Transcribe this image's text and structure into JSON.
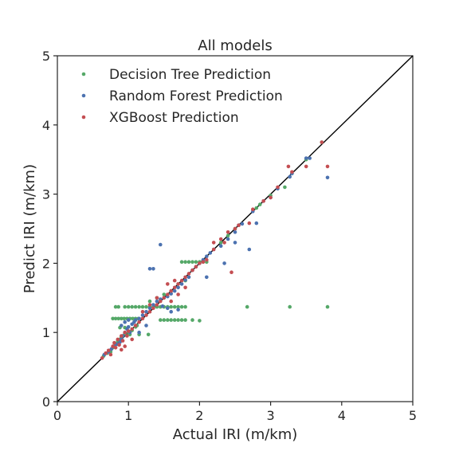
{
  "chart_data": {
    "type": "scatter",
    "title": "All models",
    "xlabel": "Actual IRI (m/km)",
    "ylabel": "Predict IRI (m/km)",
    "xlim": [
      0,
      5
    ],
    "ylim": [
      0,
      5
    ],
    "xticks": [
      "0",
      "1",
      "2",
      "3",
      "4",
      "5"
    ],
    "yticks": [
      "0",
      "1",
      "2",
      "3",
      "4",
      "5"
    ],
    "grid": false,
    "legend_position": "top-left",
    "reference_line": {
      "x": [
        0,
        5
      ],
      "y": [
        0,
        5
      ],
      "color": "#000000"
    },
    "series": [
      {
        "name": "Decision Tree Prediction",
        "color": "#55a868",
        "points": [
          [
            0.65,
            0.66
          ],
          [
            0.7,
            0.7
          ],
          [
            0.75,
            0.72
          ],
          [
            0.78,
            0.78
          ],
          [
            0.8,
            0.8
          ],
          [
            0.82,
            0.84
          ],
          [
            0.85,
            0.88
          ],
          [
            0.88,
            0.9
          ],
          [
            0.9,
            0.93
          ],
          [
            0.92,
            0.95
          ],
          [
            0.95,
            0.98
          ],
          [
            1.0,
            1.0
          ],
          [
            1.05,
            1.03
          ],
          [
            1.1,
            1.08
          ],
          [
            1.12,
            1.1
          ],
          [
            1.02,
            0.97
          ],
          [
            1.15,
            0.97
          ],
          [
            1.28,
            0.97
          ],
          [
            0.95,
            1.07
          ],
          [
            0.88,
            1.07
          ],
          [
            0.78,
            1.2
          ],
          [
            0.82,
            1.2
          ],
          [
            0.86,
            1.2
          ],
          [
            0.9,
            1.2
          ],
          [
            0.94,
            1.2
          ],
          [
            0.98,
            1.2
          ],
          [
            1.02,
            1.2
          ],
          [
            1.06,
            1.2
          ],
          [
            1.1,
            1.2
          ],
          [
            1.14,
            1.2
          ],
          [
            1.45,
            1.18
          ],
          [
            1.5,
            1.18
          ],
          [
            1.55,
            1.18
          ],
          [
            1.6,
            1.18
          ],
          [
            1.65,
            1.18
          ],
          [
            1.7,
            1.18
          ],
          [
            1.75,
            1.18
          ],
          [
            1.8,
            1.18
          ],
          [
            1.9,
            1.18
          ],
          [
            2.0,
            1.17
          ],
          [
            0.82,
            1.37
          ],
          [
            0.86,
            1.37
          ],
          [
            0.95,
            1.37
          ],
          [
            1.0,
            1.37
          ],
          [
            1.05,
            1.37
          ],
          [
            1.1,
            1.37
          ],
          [
            1.15,
            1.37
          ],
          [
            1.2,
            1.37
          ],
          [
            1.25,
            1.37
          ],
          [
            1.3,
            1.37
          ],
          [
            1.35,
            1.37
          ],
          [
            1.4,
            1.37
          ],
          [
            1.45,
            1.37
          ],
          [
            1.5,
            1.37
          ],
          [
            1.55,
            1.37
          ],
          [
            1.6,
            1.37
          ],
          [
            1.65,
            1.37
          ],
          [
            1.7,
            1.37
          ],
          [
            1.75,
            1.37
          ],
          [
            1.8,
            1.37
          ],
          [
            2.67,
            1.37
          ],
          [
            3.27,
            1.37
          ],
          [
            3.8,
            1.37
          ],
          [
            1.3,
            1.45
          ],
          [
            1.4,
            1.5
          ],
          [
            1.5,
            1.55
          ],
          [
            1.6,
            1.6
          ],
          [
            1.7,
            1.7
          ],
          [
            1.8,
            1.75
          ],
          [
            1.75,
            2.02
          ],
          [
            1.8,
            2.02
          ],
          [
            1.85,
            2.02
          ],
          [
            1.9,
            2.02
          ],
          [
            1.95,
            2.02
          ],
          [
            2.0,
            2.02
          ],
          [
            2.05,
            2.02
          ],
          [
            2.1,
            2.02
          ],
          [
            2.3,
            2.3
          ],
          [
            2.4,
            2.4
          ],
          [
            2.5,
            2.5
          ],
          [
            2.8,
            2.8
          ],
          [
            2.85,
            2.85
          ],
          [
            3.0,
            2.98
          ],
          [
            3.2,
            3.1
          ],
          [
            3.3,
            3.3
          ],
          [
            3.5,
            3.5
          ],
          [
            3.72,
            3.75
          ]
        ]
      },
      {
        "name": "Random Forest Prediction",
        "color": "#4c72b0",
        "points": [
          [
            0.66,
            0.68
          ],
          [
            0.72,
            0.72
          ],
          [
            0.76,
            0.76
          ],
          [
            0.8,
            0.8
          ],
          [
            0.84,
            0.83
          ],
          [
            0.88,
            0.86
          ],
          [
            0.9,
            0.9
          ],
          [
            0.92,
            0.95
          ],
          [
            0.95,
            1.0
          ],
          [
            0.98,
            1.05
          ],
          [
            1.0,
            1.08
          ],
          [
            1.02,
            1.0
          ],
          [
            1.05,
            1.12
          ],
          [
            1.08,
            1.15
          ],
          [
            1.1,
            1.18
          ],
          [
            0.9,
            1.1
          ],
          [
            0.95,
            1.15
          ],
          [
            1.0,
            1.18
          ],
          [
            1.15,
            1.2
          ],
          [
            1.2,
            1.25
          ],
          [
            1.25,
            1.3
          ],
          [
            1.3,
            1.35
          ],
          [
            1.35,
            1.4
          ],
          [
            1.4,
            1.45
          ],
          [
            1.45,
            1.48
          ],
          [
            1.48,
            1.38
          ],
          [
            1.5,
            1.5
          ],
          [
            1.55,
            1.52
          ],
          [
            1.6,
            1.56
          ],
          [
            1.65,
            1.6
          ],
          [
            1.7,
            1.65
          ],
          [
            1.75,
            1.7
          ],
          [
            1.8,
            1.76
          ],
          [
            1.85,
            1.8
          ],
          [
            1.3,
            1.92
          ],
          [
            1.35,
            1.92
          ],
          [
            1.45,
            2.27
          ],
          [
            1.55,
            1.35
          ],
          [
            1.6,
            1.3
          ],
          [
            1.7,
            1.33
          ],
          [
            1.9,
            1.9
          ],
          [
            1.95,
            1.95
          ],
          [
            2.0,
            2.0
          ],
          [
            2.05,
            2.05
          ],
          [
            2.1,
            2.1
          ],
          [
            2.15,
            2.15
          ],
          [
            2.2,
            2.2
          ],
          [
            2.3,
            2.25
          ],
          [
            2.4,
            2.35
          ],
          [
            2.5,
            2.45
          ],
          [
            2.55,
            2.55
          ],
          [
            2.6,
            2.57
          ],
          [
            2.7,
            2.2
          ],
          [
            2.75,
            2.75
          ],
          [
            2.8,
            2.58
          ],
          [
            2.9,
            2.9
          ],
          [
            3.0,
            2.95
          ],
          [
            3.1,
            3.08
          ],
          [
            3.27,
            3.25
          ],
          [
            3.3,
            3.3
          ],
          [
            3.5,
            3.52
          ],
          [
            3.55,
            3.52
          ],
          [
            3.8,
            3.24
          ],
          [
            2.1,
            1.8
          ],
          [
            2.35,
            2.0
          ],
          [
            2.5,
            2.3
          ],
          [
            1.25,
            1.1
          ],
          [
            1.15,
            1.0
          ]
        ]
      },
      {
        "name": "XGBoost Prediction",
        "color": "#c44e52",
        "points": [
          [
            0.63,
            0.63
          ],
          [
            0.68,
            0.7
          ],
          [
            0.72,
            0.74
          ],
          [
            0.75,
            0.68
          ],
          [
            0.78,
            0.8
          ],
          [
            0.8,
            0.85
          ],
          [
            0.82,
            0.78
          ],
          [
            0.85,
            0.9
          ],
          [
            0.87,
            0.82
          ],
          [
            0.9,
            0.95
          ],
          [
            0.92,
            0.88
          ],
          [
            0.95,
            1.0
          ],
          [
            0.98,
            0.95
          ],
          [
            1.0,
            1.02
          ],
          [
            1.05,
            1.05
          ],
          [
            1.1,
            1.1
          ],
          [
            1.15,
            1.15
          ],
          [
            1.2,
            1.2
          ],
          [
            1.25,
            1.25
          ],
          [
            1.3,
            1.3
          ],
          [
            1.35,
            1.35
          ],
          [
            1.4,
            1.4
          ],
          [
            1.45,
            1.45
          ],
          [
            1.5,
            1.5
          ],
          [
            1.55,
            1.55
          ],
          [
            1.6,
            1.6
          ],
          [
            1.65,
            1.65
          ],
          [
            1.7,
            1.7
          ],
          [
            1.75,
            1.75
          ],
          [
            1.8,
            1.8
          ],
          [
            1.85,
            1.85
          ],
          [
            1.9,
            1.9
          ],
          [
            1.95,
            1.95
          ],
          [
            2.0,
            2.0
          ],
          [
            2.05,
            2.02
          ],
          [
            2.1,
            2.05
          ],
          [
            2.2,
            2.3
          ],
          [
            2.3,
            2.35
          ],
          [
            2.4,
            2.45
          ],
          [
            2.5,
            2.5
          ],
          [
            2.45,
            1.87
          ],
          [
            2.55,
            2.55
          ],
          [
            2.7,
            2.58
          ],
          [
            2.75,
            2.78
          ],
          [
            2.9,
            2.9
          ],
          [
            3.0,
            2.95
          ],
          [
            3.1,
            3.1
          ],
          [
            3.25,
            3.4
          ],
          [
            3.3,
            3.32
          ],
          [
            3.5,
            3.4
          ],
          [
            3.72,
            3.75
          ],
          [
            3.8,
            3.4
          ],
          [
            1.6,
            1.45
          ],
          [
            1.7,
            1.55
          ],
          [
            1.8,
            1.65
          ],
          [
            1.55,
            1.7
          ],
          [
            1.65,
            1.75
          ],
          [
            1.4,
            1.5
          ],
          [
            1.3,
            1.4
          ],
          [
            1.2,
            1.3
          ],
          [
            0.9,
            0.75
          ],
          [
            0.95,
            0.8
          ],
          [
            1.05,
            0.9
          ],
          [
            2.2,
            2.2
          ],
          [
            2.35,
            2.3
          ]
        ]
      }
    ]
  }
}
